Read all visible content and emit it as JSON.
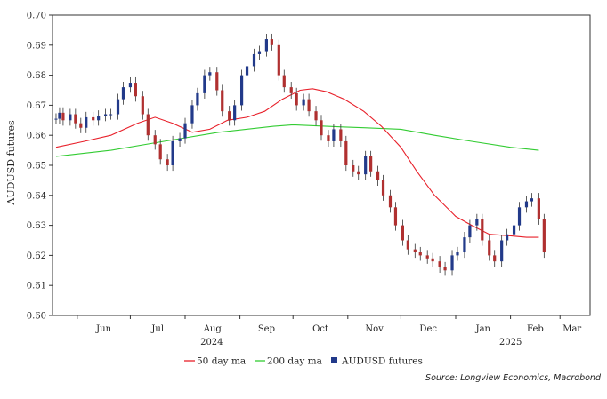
{
  "chart_data": {
    "type": "line",
    "ylabel": "AUDUSD futures",
    "ylim": [
      0.6,
      0.7
    ],
    "yticks": [
      "0.60",
      "0.61",
      "0.62",
      "0.63",
      "0.64",
      "0.65",
      "0.66",
      "0.67",
      "0.68",
      "0.69",
      "0.70"
    ],
    "xlim": [
      "2024-05-18",
      "2025-03-18"
    ],
    "xticks": [
      {
        "date": "2024-06-01",
        "label": "Jun"
      },
      {
        "date": "2024-07-01",
        "label": "Jul"
      },
      {
        "date": "2024-08-01",
        "label": "Aug"
      },
      {
        "date": "2024-09-01",
        "label": "Sep"
      },
      {
        "date": "2024-10-01",
        "label": "Oct"
      },
      {
        "date": "2024-11-01",
        "label": "Nov"
      },
      {
        "date": "2024-12-01",
        "label": "Dec"
      },
      {
        "date": "2025-01-01",
        "label": "Jan"
      },
      {
        "date": "2025-02-01",
        "label": "Feb"
      },
      {
        "date": "2025-03-01",
        "label": "Mar"
      }
    ],
    "year_labels": [
      {
        "date": "2024-08-16",
        "label": "2024"
      },
      {
        "date": "2025-02-01",
        "label": "2025"
      }
    ],
    "series": [
      {
        "name": "50 day ma",
        "color": "#e8202a",
        "x": [
          "2024-05-20",
          "2024-06-05",
          "2024-06-20",
          "2024-07-05",
          "2024-07-15",
          "2024-07-25",
          "2024-08-05",
          "2024-08-15",
          "2024-08-25",
          "2024-09-05",
          "2024-09-15",
          "2024-09-25",
          "2024-10-05",
          "2024-10-12",
          "2024-10-20",
          "2024-10-30",
          "2024-11-10",
          "2024-11-20",
          "2024-12-01",
          "2024-12-10",
          "2024-12-20",
          "2025-01-01",
          "2025-01-10",
          "2025-01-20",
          "2025-02-01",
          "2025-02-10",
          "2025-02-17"
        ],
        "values": [
          0.656,
          0.658,
          0.66,
          0.664,
          0.666,
          0.664,
          0.661,
          0.662,
          0.665,
          0.666,
          0.668,
          0.672,
          0.675,
          0.6755,
          0.6745,
          0.672,
          0.668,
          0.663,
          0.656,
          0.648,
          0.64,
          0.633,
          0.63,
          0.627,
          0.6265,
          0.626,
          0.626
        ]
      },
      {
        "name": "200 day ma",
        "color": "#33cc33",
        "x": [
          "2024-05-20",
          "2024-06-20",
          "2024-07-20",
          "2024-08-20",
          "2024-09-20",
          "2024-10-01",
          "2024-10-20",
          "2024-11-10",
          "2024-12-01",
          "2024-12-20",
          "2025-01-10",
          "2025-02-01",
          "2025-02-17"
        ],
        "values": [
          0.653,
          0.655,
          0.658,
          0.661,
          0.663,
          0.6635,
          0.663,
          0.6625,
          0.662,
          0.66,
          0.658,
          0.656,
          0.655
        ]
      },
      {
        "name": "AUDUSD futures",
        "type": "ohlc",
        "up_color": "#223a8a",
        "down_color": "#b03030",
        "x": [
          "2024-05-20",
          "2024-05-22",
          "2024-05-24",
          "2024-05-28",
          "2024-05-31",
          "2024-06-03",
          "2024-06-06",
          "2024-06-10",
          "2024-06-13",
          "2024-06-17",
          "2024-06-20",
          "2024-06-24",
          "2024-06-27",
          "2024-07-01",
          "2024-07-04",
          "2024-07-08",
          "2024-07-11",
          "2024-07-15",
          "2024-07-18",
          "2024-07-22",
          "2024-07-25",
          "2024-07-29",
          "2024-08-01",
          "2024-08-05",
          "2024-08-08",
          "2024-08-12",
          "2024-08-15",
          "2024-08-19",
          "2024-08-22",
          "2024-08-26",
          "2024-08-29",
          "2024-09-02",
          "2024-09-05",
          "2024-09-09",
          "2024-09-12",
          "2024-09-16",
          "2024-09-19",
          "2024-09-23",
          "2024-09-26",
          "2024-09-30",
          "2024-10-03",
          "2024-10-07",
          "2024-10-10",
          "2024-10-14",
          "2024-10-17",
          "2024-10-21",
          "2024-10-24",
          "2024-10-28",
          "2024-10-31",
          "2024-11-04",
          "2024-11-07",
          "2024-11-11",
          "2024-11-14",
          "2024-11-18",
          "2024-11-21",
          "2024-11-25",
          "2024-11-28",
          "2024-12-02",
          "2024-12-05",
          "2024-12-09",
          "2024-12-12",
          "2024-12-16",
          "2024-12-19",
          "2024-12-23",
          "2024-12-26",
          "2024-12-30",
          "2025-01-02",
          "2025-01-06",
          "2025-01-09",
          "2025-01-13",
          "2025-01-16",
          "2025-01-20",
          "2025-01-23",
          "2025-01-27",
          "2025-01-30",
          "2025-02-03",
          "2025-02-06",
          "2025-02-10",
          "2025-02-13",
          "2025-02-17",
          "2025-02-20"
        ],
        "close": [
          0.6655,
          0.6675,
          0.665,
          0.667,
          0.664,
          0.6625,
          0.666,
          0.665,
          0.6665,
          0.667,
          0.667,
          0.672,
          0.676,
          0.6775,
          0.673,
          0.667,
          0.66,
          0.657,
          0.652,
          0.65,
          0.658,
          0.659,
          0.664,
          0.67,
          0.674,
          0.68,
          0.681,
          0.675,
          0.668,
          0.665,
          0.67,
          0.68,
          0.683,
          0.687,
          0.688,
          0.692,
          0.69,
          0.68,
          0.676,
          0.674,
          0.67,
          0.672,
          0.668,
          0.665,
          0.66,
          0.658,
          0.662,
          0.658,
          0.65,
          0.648,
          0.647,
          0.653,
          0.648,
          0.645,
          0.64,
          0.636,
          0.63,
          0.625,
          0.622,
          0.621,
          0.62,
          0.619,
          0.618,
          0.616,
          0.615,
          0.62,
          0.621,
          0.626,
          0.63,
          0.632,
          0.625,
          0.62,
          0.618,
          0.625,
          0.627,
          0.63,
          0.636,
          0.638,
          0.639,
          0.632,
          0.621
        ]
      }
    ]
  },
  "source": "Source: Longview Economics, Macrobond"
}
